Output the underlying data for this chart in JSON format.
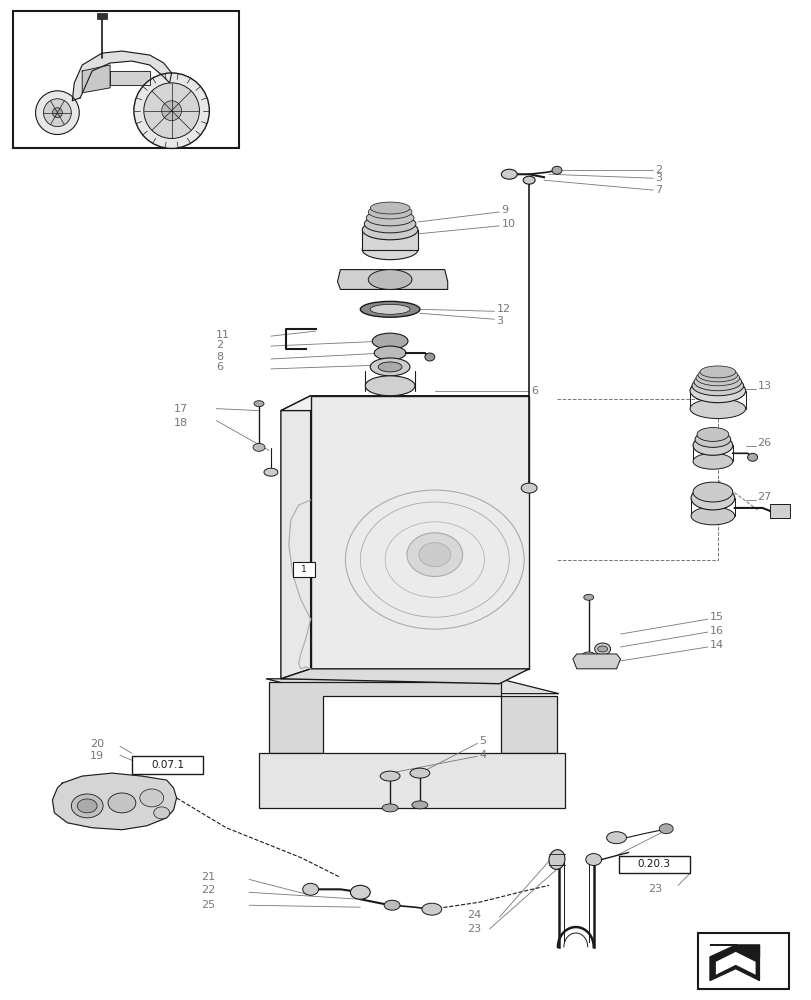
{
  "bg_color": "#ffffff",
  "lc": "#1a1a1a",
  "gc": "#888888",
  "fig_width": 8.12,
  "fig_height": 10.0,
  "dpi": 100
}
